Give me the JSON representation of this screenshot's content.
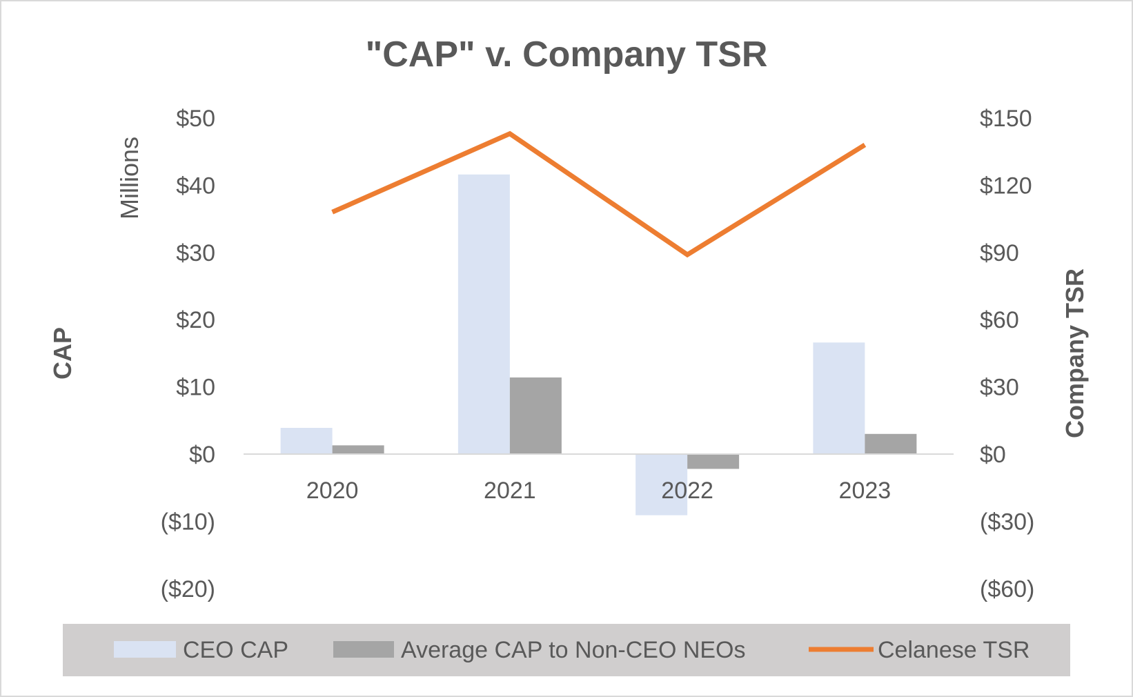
{
  "chart_data": {
    "type": "bar+line",
    "title": "\"CAP\" v. Company TSR",
    "categories": [
      "2020",
      "2021",
      "2022",
      "2023"
    ],
    "y_left": {
      "label": "CAP",
      "unit_label": "Millions",
      "range": [
        -20,
        50
      ],
      "ticks": [
        50,
        40,
        30,
        20,
        10,
        0,
        -10,
        -20
      ],
      "tick_labels": [
        "$50",
        "$40",
        "$30",
        "$20",
        "$10",
        "$0",
        "($10)",
        "($20)"
      ]
    },
    "y_right": {
      "label": "Company TSR",
      "range": [
        -60,
        150
      ],
      "ticks": [
        150,
        120,
        90,
        60,
        30,
        0,
        -30,
        -60
      ],
      "tick_labels": [
        "$150",
        "$120",
        "$90",
        "$60",
        "$30",
        "$0",
        "($30)",
        "($60)"
      ]
    },
    "series": [
      {
        "name": "CEO CAP",
        "type": "bar",
        "axis": "left",
        "color": "#DAE3F3",
        "values": [
          3.9,
          41.6,
          -9.1,
          16.6
        ]
      },
      {
        "name": "Average CAP to Non-CEO NEOs",
        "type": "bar",
        "axis": "left",
        "color": "#A5A5A5",
        "values": [
          1.3,
          11.4,
          -2.2,
          3.0
        ]
      },
      {
        "name": "Celanese TSR",
        "type": "line",
        "axis": "right",
        "color": "#ED7D31",
        "values": [
          108,
          143,
          89,
          138
        ]
      }
    ],
    "grid": false,
    "legend_position": "bottom"
  }
}
